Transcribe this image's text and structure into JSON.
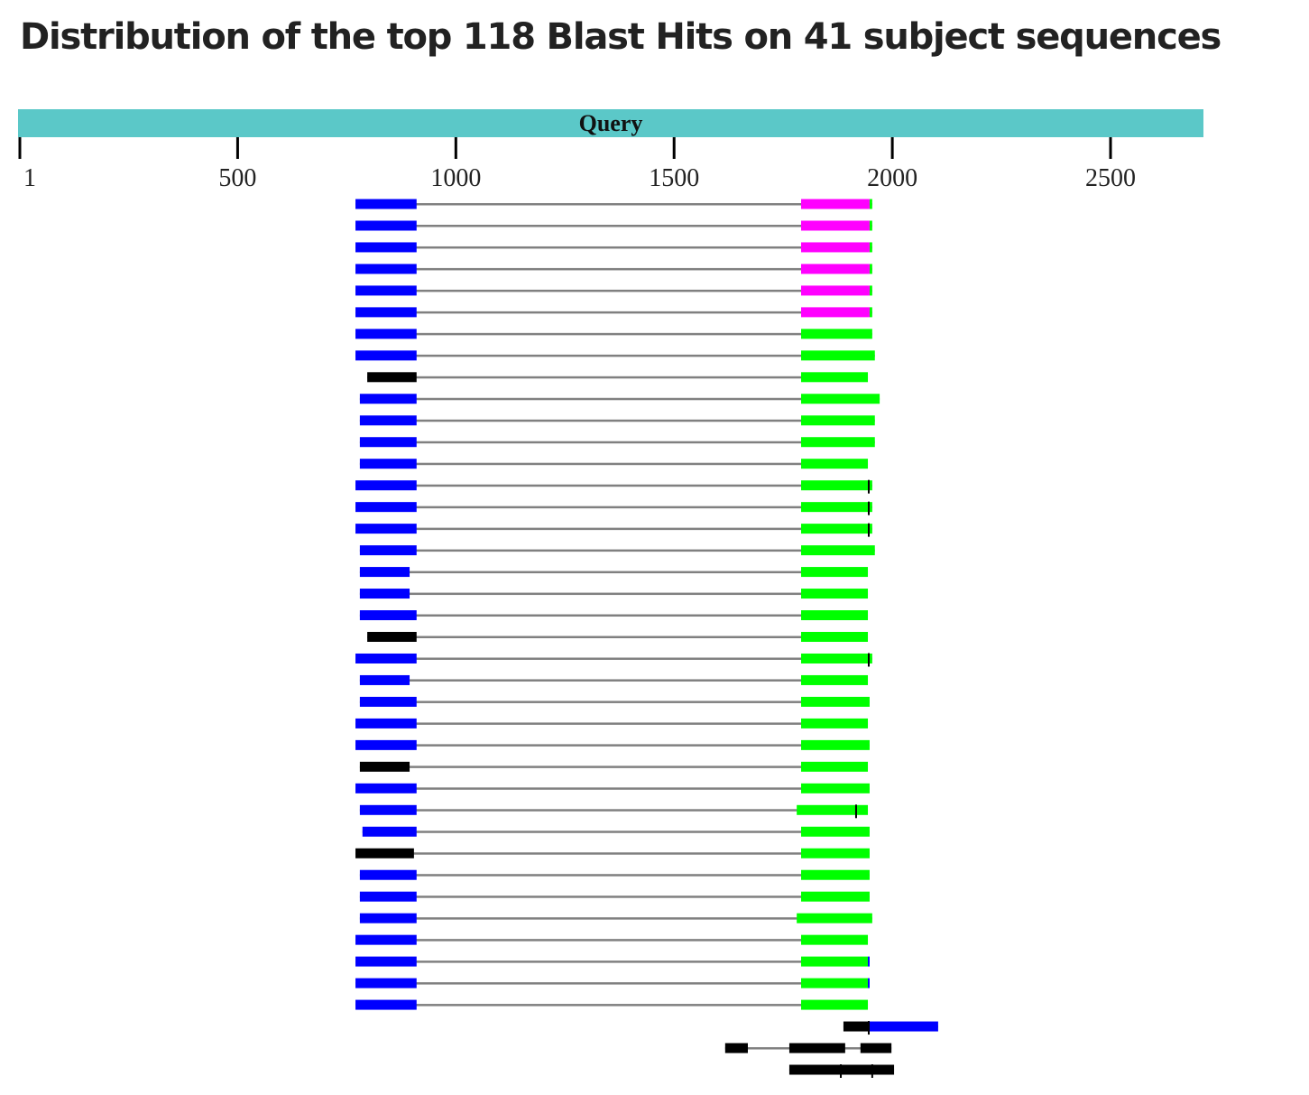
{
  "title": "Distribution of the top 118 Blast Hits on 41 subject sequences",
  "chart_data": {
    "type": "alignment-track",
    "title": "Distribution of the top 118 Blast Hits on 41 subject sequences",
    "query_label": "Query",
    "query_range": [
      1,
      2713
    ],
    "tick_labels": [
      "1",
      "500",
      "1000",
      "1500",
      "2000",
      "2500"
    ],
    "tick_values": [
      1,
      500,
      1000,
      1500,
      2000,
      2500
    ],
    "colors": {
      "query": "#5bc8c8",
      "blue": "#0000ff",
      "magenta": "#ff00ff",
      "green": "#00ff00",
      "black": "#000000",
      "connector": "#808080"
    },
    "hits": [
      {
        "segments": [
          [
            770,
            910,
            "blue"
          ],
          [
            1791,
            1948,
            "magenta"
          ],
          [
            1948,
            1954,
            "green"
          ]
        ]
      },
      {
        "segments": [
          [
            770,
            910,
            "blue"
          ],
          [
            1791,
            1948,
            "magenta"
          ],
          [
            1948,
            1954,
            "green"
          ]
        ]
      },
      {
        "segments": [
          [
            770,
            910,
            "blue"
          ],
          [
            1791,
            1948,
            "magenta"
          ],
          [
            1948,
            1954,
            "green"
          ]
        ]
      },
      {
        "segments": [
          [
            770,
            910,
            "blue"
          ],
          [
            1791,
            1948,
            "magenta"
          ],
          [
            1948,
            1954,
            "green"
          ]
        ]
      },
      {
        "segments": [
          [
            770,
            910,
            "blue"
          ],
          [
            1791,
            1948,
            "magenta"
          ],
          [
            1948,
            1954,
            "green"
          ]
        ]
      },
      {
        "segments": [
          [
            770,
            910,
            "blue"
          ],
          [
            1791,
            1948,
            "magenta"
          ],
          [
            1948,
            1954,
            "green"
          ]
        ]
      },
      {
        "segments": [
          [
            770,
            910,
            "blue"
          ],
          [
            1791,
            1954,
            "green"
          ]
        ]
      },
      {
        "segments": [
          [
            770,
            910,
            "blue"
          ],
          [
            1791,
            1960,
            "green"
          ]
        ]
      },
      {
        "segments": [
          [
            797,
            910,
            "black"
          ],
          [
            1791,
            1944,
            "green"
          ]
        ]
      },
      {
        "segments": [
          [
            780,
            910,
            "blue"
          ],
          [
            1791,
            1971,
            "green"
          ]
        ]
      },
      {
        "segments": [
          [
            780,
            910,
            "blue"
          ],
          [
            1791,
            1960,
            "green"
          ]
        ]
      },
      {
        "segments": [
          [
            780,
            910,
            "blue"
          ],
          [
            1791,
            1960,
            "green"
          ]
        ]
      },
      {
        "segments": [
          [
            780,
            910,
            "blue"
          ],
          [
            1791,
            1944,
            "green"
          ]
        ]
      },
      {
        "segments": [
          [
            770,
            910,
            "blue"
          ],
          [
            1791,
            1954,
            "green"
          ]
        ],
        "ticks": [
          1946
        ]
      },
      {
        "segments": [
          [
            770,
            910,
            "blue"
          ],
          [
            1791,
            1954,
            "green"
          ]
        ],
        "ticks": [
          1946
        ]
      },
      {
        "segments": [
          [
            770,
            910,
            "blue"
          ],
          [
            1791,
            1954,
            "green"
          ]
        ],
        "ticks": [
          1946
        ]
      },
      {
        "segments": [
          [
            780,
            910,
            "blue"
          ],
          [
            1791,
            1960,
            "green"
          ]
        ]
      },
      {
        "segments": [
          [
            780,
            894,
            "blue"
          ],
          [
            1791,
            1944,
            "green"
          ]
        ]
      },
      {
        "segments": [
          [
            780,
            894,
            "blue"
          ],
          [
            1791,
            1944,
            "green"
          ]
        ]
      },
      {
        "segments": [
          [
            780,
            910,
            "blue"
          ],
          [
            1791,
            1944,
            "green"
          ]
        ]
      },
      {
        "segments": [
          [
            797,
            910,
            "black"
          ],
          [
            1791,
            1944,
            "green"
          ]
        ]
      },
      {
        "segments": [
          [
            770,
            910,
            "blue"
          ],
          [
            1791,
            1954,
            "green"
          ]
        ],
        "ticks": [
          1946
        ]
      },
      {
        "segments": [
          [
            780,
            894,
            "blue"
          ],
          [
            1791,
            1944,
            "green"
          ]
        ]
      },
      {
        "segments": [
          [
            780,
            910,
            "blue"
          ],
          [
            1791,
            1948,
            "green"
          ]
        ]
      },
      {
        "segments": [
          [
            770,
            910,
            "blue"
          ],
          [
            1791,
            1944,
            "green"
          ]
        ]
      },
      {
        "segments": [
          [
            770,
            910,
            "blue"
          ],
          [
            1791,
            1948,
            "green"
          ]
        ]
      },
      {
        "segments": [
          [
            780,
            894,
            "black"
          ],
          [
            1791,
            1944,
            "green"
          ]
        ]
      },
      {
        "segments": [
          [
            770,
            910,
            "blue"
          ],
          [
            1791,
            1948,
            "green"
          ]
        ]
      },
      {
        "segments": [
          [
            780,
            910,
            "blue"
          ],
          [
            1781,
            1944,
            "green"
          ]
        ],
        "ticks": [
          1917
        ]
      },
      {
        "segments": [
          [
            786,
            910,
            "blue"
          ],
          [
            1791,
            1948,
            "green"
          ]
        ]
      },
      {
        "segments": [
          [
            770,
            904,
            "black"
          ],
          [
            1791,
            1948,
            "green"
          ]
        ]
      },
      {
        "segments": [
          [
            780,
            910,
            "blue"
          ],
          [
            1791,
            1948,
            "green"
          ]
        ]
      },
      {
        "segments": [
          [
            780,
            910,
            "blue"
          ],
          [
            1791,
            1948,
            "green"
          ]
        ]
      },
      {
        "segments": [
          [
            780,
            910,
            "blue"
          ],
          [
            1781,
            1954,
            "green"
          ]
        ]
      },
      {
        "segments": [
          [
            770,
            910,
            "blue"
          ],
          [
            1791,
            1944,
            "green"
          ]
        ]
      },
      {
        "segments": [
          [
            770,
            910,
            "blue"
          ],
          [
            1791,
            1944,
            "green"
          ],
          [
            1944,
            1948,
            "blue"
          ]
        ]
      },
      {
        "segments": [
          [
            770,
            910,
            "blue"
          ],
          [
            1791,
            1944,
            "green"
          ],
          [
            1944,
            1948,
            "blue"
          ]
        ]
      },
      {
        "segments": [
          [
            770,
            910,
            "blue"
          ],
          [
            1791,
            1944,
            "green"
          ]
        ]
      },
      {
        "segments": [
          [
            1888,
            1946,
            "black"
          ],
          [
            1946,
            2105,
            "blue"
          ]
        ],
        "ticks": [
          1946
        ]
      },
      {
        "segments": [
          [
            1617,
            1669,
            "black"
          ],
          [
            1764,
            1892,
            "black"
          ],
          [
            1927,
            1998,
            "black"
          ]
        ]
      },
      {
        "segments": [
          [
            1764,
            2004,
            "black"
          ]
        ],
        "ticks": [
          1882,
          1954
        ]
      }
    ]
  }
}
